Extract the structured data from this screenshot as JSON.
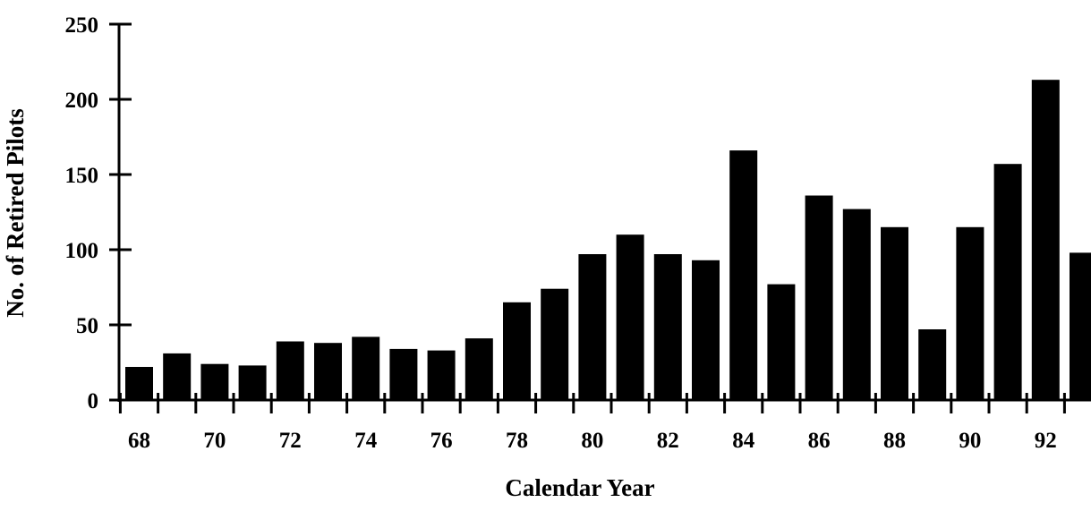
{
  "chart_data": {
    "type": "bar",
    "title": "",
    "xlabel": "Calendar Year",
    "ylabel": "No. of Retired Pilots",
    "ylim": [
      0,
      250
    ],
    "yticks": [
      "0",
      "50",
      "100",
      "150",
      "200",
      "250"
    ],
    "xtick_labels": [
      "68",
      "70",
      "72",
      "74",
      "76",
      "78",
      "80",
      "82",
      "84",
      "86",
      "88",
      "90",
      "92"
    ],
    "categories": [
      "68",
      "69",
      "70",
      "71",
      "72",
      "73",
      "74",
      "75",
      "76",
      "77",
      "78",
      "79",
      "80",
      "81",
      "82",
      "83",
      "84",
      "85",
      "86",
      "87",
      "88",
      "89",
      "90",
      "91",
      "92",
      "93"
    ],
    "values": [
      22,
      31,
      24,
      23,
      39,
      38,
      42,
      34,
      33,
      41,
      65,
      74,
      97,
      110,
      97,
      93,
      166,
      77,
      136,
      127,
      115,
      47,
      115,
      157,
      213,
      98
    ],
    "colors": {
      "bar": "#000000",
      "axis": "#000000"
    },
    "grid": false,
    "legend": "none"
  }
}
